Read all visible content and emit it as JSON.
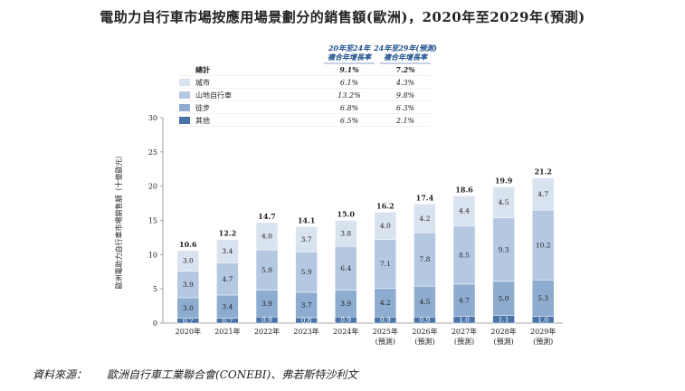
{
  "title": "電助力自行車市場按應用場景劃分的銷售額(歐洲)，2020年至2029年(預測)",
  "source_label": "資料來源：",
  "source_text": "歐洲自行車工業聯合會(CONEBI)、弗若斯特沙利文",
  "colors": {
    "other": "#4a74a8",
    "hiking": "#8eacd0",
    "mtb": "#b5c8e2",
    "city": "#d9e3ef",
    "total_swatch": "#ffffff"
  },
  "chart_data": {
    "type": "bar",
    "stacked": true,
    "ylabel": "歐洲電助力自行車市場銷售額（十億歐元）",
    "ylim": [
      0,
      30
    ],
    "yticks": [
      0,
      5,
      10,
      15,
      20,
      25,
      30
    ],
    "categories": [
      "2020年",
      "2021年",
      "2022年",
      "2023年",
      "2024年",
      "2025年",
      "2026年",
      "2027年",
      "2028年",
      "2029年"
    ],
    "category_sub": [
      "",
      "",
      "",
      "",
      "",
      "(預測)",
      "(預測)",
      "(預測)",
      "(預測)",
      "(預測)"
    ],
    "series": [
      {
        "name": "其他",
        "key": "other",
        "values": [
          0.7,
          0.7,
          0.9,
          0.8,
          0.9,
          0.9,
          0.9,
          1.0,
          1.1,
          1.0
        ]
      },
      {
        "name": "徒步",
        "key": "hiking",
        "values": [
          3.0,
          3.4,
          3.9,
          3.7,
          3.9,
          4.2,
          4.5,
          4.7,
          5.0,
          5.3
        ]
      },
      {
        "name": "山地自行車",
        "key": "mtb",
        "values": [
          3.9,
          4.7,
          5.9,
          5.9,
          6.4,
          7.1,
          7.8,
          8.5,
          9.3,
          10.2
        ]
      },
      {
        "name": "城市",
        "key": "city",
        "values": [
          3.0,
          3.4,
          4.0,
          3.7,
          3.8,
          4.0,
          4.2,
          4.4,
          4.5,
          4.7
        ]
      }
    ],
    "totals": [
      10.6,
      12.2,
      14.7,
      14.1,
      15.0,
      16.2,
      17.4,
      18.6,
      19.9,
      21.2
    ],
    "cagr_table": {
      "head1": [
        "20年至24年",
        "複合年增長率"
      ],
      "head2": [
        "24年至29年(預測)",
        "複合年增長率"
      ],
      "rows": [
        {
          "name": "總計",
          "swatch": "total_swatch",
          "c1": "9.1%",
          "c2": "7.2%",
          "bold": true
        },
        {
          "name": "城市",
          "swatch": "city",
          "c1": "6.1%",
          "c2": "4.3%"
        },
        {
          "name": "山地自行車",
          "swatch": "mtb",
          "c1": "13.2%",
          "c2": "9.8%"
        },
        {
          "name": "徒步",
          "swatch": "hiking",
          "c1": "6.8%",
          "c2": "6.3%"
        },
        {
          "name": "其他",
          "swatch": "other",
          "c1": "6.5%",
          "c2": "2.1%"
        }
      ]
    }
  }
}
